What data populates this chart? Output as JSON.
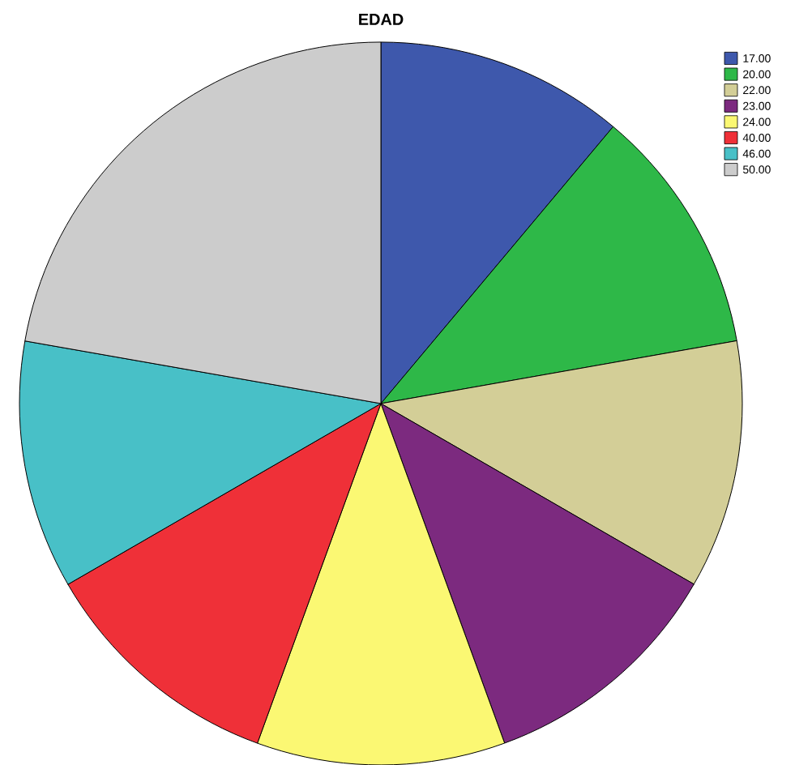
{
  "chart_data": {
    "type": "pie",
    "title": "EDAD",
    "categories": [
      "17.00",
      "20.00",
      "22.00",
      "23.00",
      "24.00",
      "40.00",
      "46.00",
      "50.00"
    ],
    "values": [
      11.11,
      11.11,
      11.11,
      11.11,
      11.11,
      11.11,
      11.11,
      22.23
    ],
    "colors": [
      "#3e58ac",
      "#2eb848",
      "#d3ce97",
      "#7c2a7f",
      "#fbf873",
      "#ef3038",
      "#48c0c7",
      "#cccccc"
    ],
    "legend": "top right"
  }
}
